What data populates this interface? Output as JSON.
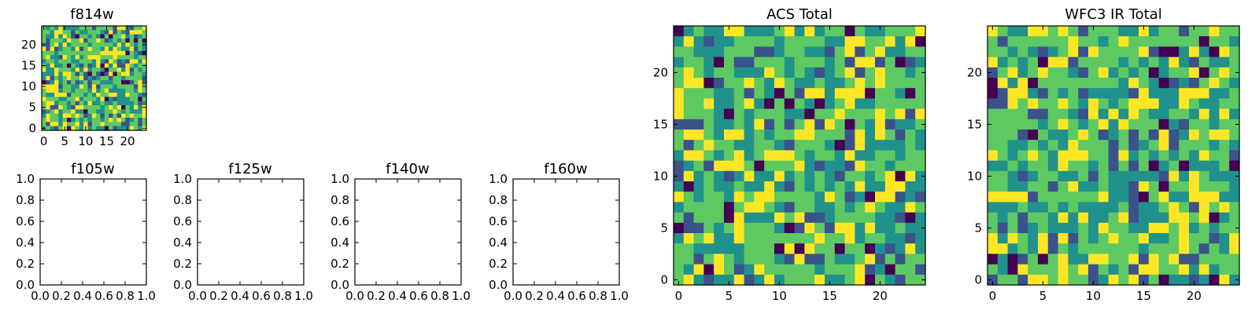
{
  "colormap": [
    "#440154",
    "#3b528b",
    "#21918c",
    "#5ec962",
    "#fde725"
  ],
  "image_seed_note": "",
  "chart_data": [
    {
      "type": "heatmap",
      "id": "f814w",
      "title": "f814w",
      "grid": [
        25,
        25
      ],
      "xticks": [
        "0",
        "5",
        "10",
        "15",
        "20"
      ],
      "yticks": [
        "0",
        "5",
        "10",
        "15",
        "20"
      ],
      "xlim": [
        -0.5,
        24.5
      ],
      "ylim": [
        -0.5,
        24.5
      ]
    },
    {
      "type": "empty",
      "id": "f105w",
      "title": "f105w",
      "xticks": [
        "0.0",
        "0.2",
        "0.4",
        "0.6",
        "0.8",
        "1.0"
      ],
      "yticks": [
        "0.0",
        "0.2",
        "0.4",
        "0.6",
        "0.8",
        "1.0"
      ],
      "xlim": [
        0,
        1
      ],
      "ylim": [
        0,
        1
      ]
    },
    {
      "type": "empty",
      "id": "f125w",
      "title": "f125w",
      "xticks": [
        "0.0",
        "0.2",
        "0.4",
        "0.6",
        "0.8",
        "1.0"
      ],
      "yticks": [
        "0.0",
        "0.2",
        "0.4",
        "0.6",
        "0.8",
        "1.0"
      ],
      "xlim": [
        0,
        1
      ],
      "ylim": [
        0,
        1
      ]
    },
    {
      "type": "empty",
      "id": "f140w",
      "title": "f140w",
      "xticks": [
        "0.0",
        "0.2",
        "0.4",
        "0.6",
        "0.8",
        "1.0"
      ],
      "yticks": [
        "0.0",
        "0.2",
        "0.4",
        "0.6",
        "0.8",
        "1.0"
      ],
      "xlim": [
        0,
        1
      ],
      "ylim": [
        0,
        1
      ]
    },
    {
      "type": "empty",
      "id": "f160w",
      "title": "f160w",
      "xticks": [
        "0.0",
        "0.2",
        "0.4",
        "0.6",
        "0.8",
        "1.0"
      ],
      "yticks": [
        "0.0",
        "0.2",
        "0.4",
        "0.6",
        "0.8",
        "1.0"
      ],
      "xlim": [
        0,
        1
      ],
      "ylim": [
        0,
        1
      ]
    },
    {
      "type": "heatmap",
      "id": "acs-total",
      "title": "ACS Total",
      "grid": [
        25,
        25
      ],
      "xticks": [
        "0",
        "5",
        "10",
        "15",
        "20"
      ],
      "yticks": [
        "0",
        "5",
        "10",
        "15",
        "20"
      ],
      "xlim": [
        -0.5,
        24.5
      ],
      "ylim": [
        -0.5,
        24.5
      ]
    },
    {
      "type": "heatmap",
      "id": "wfc3-ir-total",
      "title": "WFC3 IR Total",
      "grid": [
        25,
        25
      ],
      "xticks": [
        "0",
        "5",
        "10",
        "15",
        "20"
      ],
      "yticks": [
        "0",
        "5",
        "10",
        "15",
        "20"
      ],
      "xlim": [
        -0.5,
        24.5
      ],
      "ylim": [
        -0.5,
        24.5
      ]
    }
  ]
}
